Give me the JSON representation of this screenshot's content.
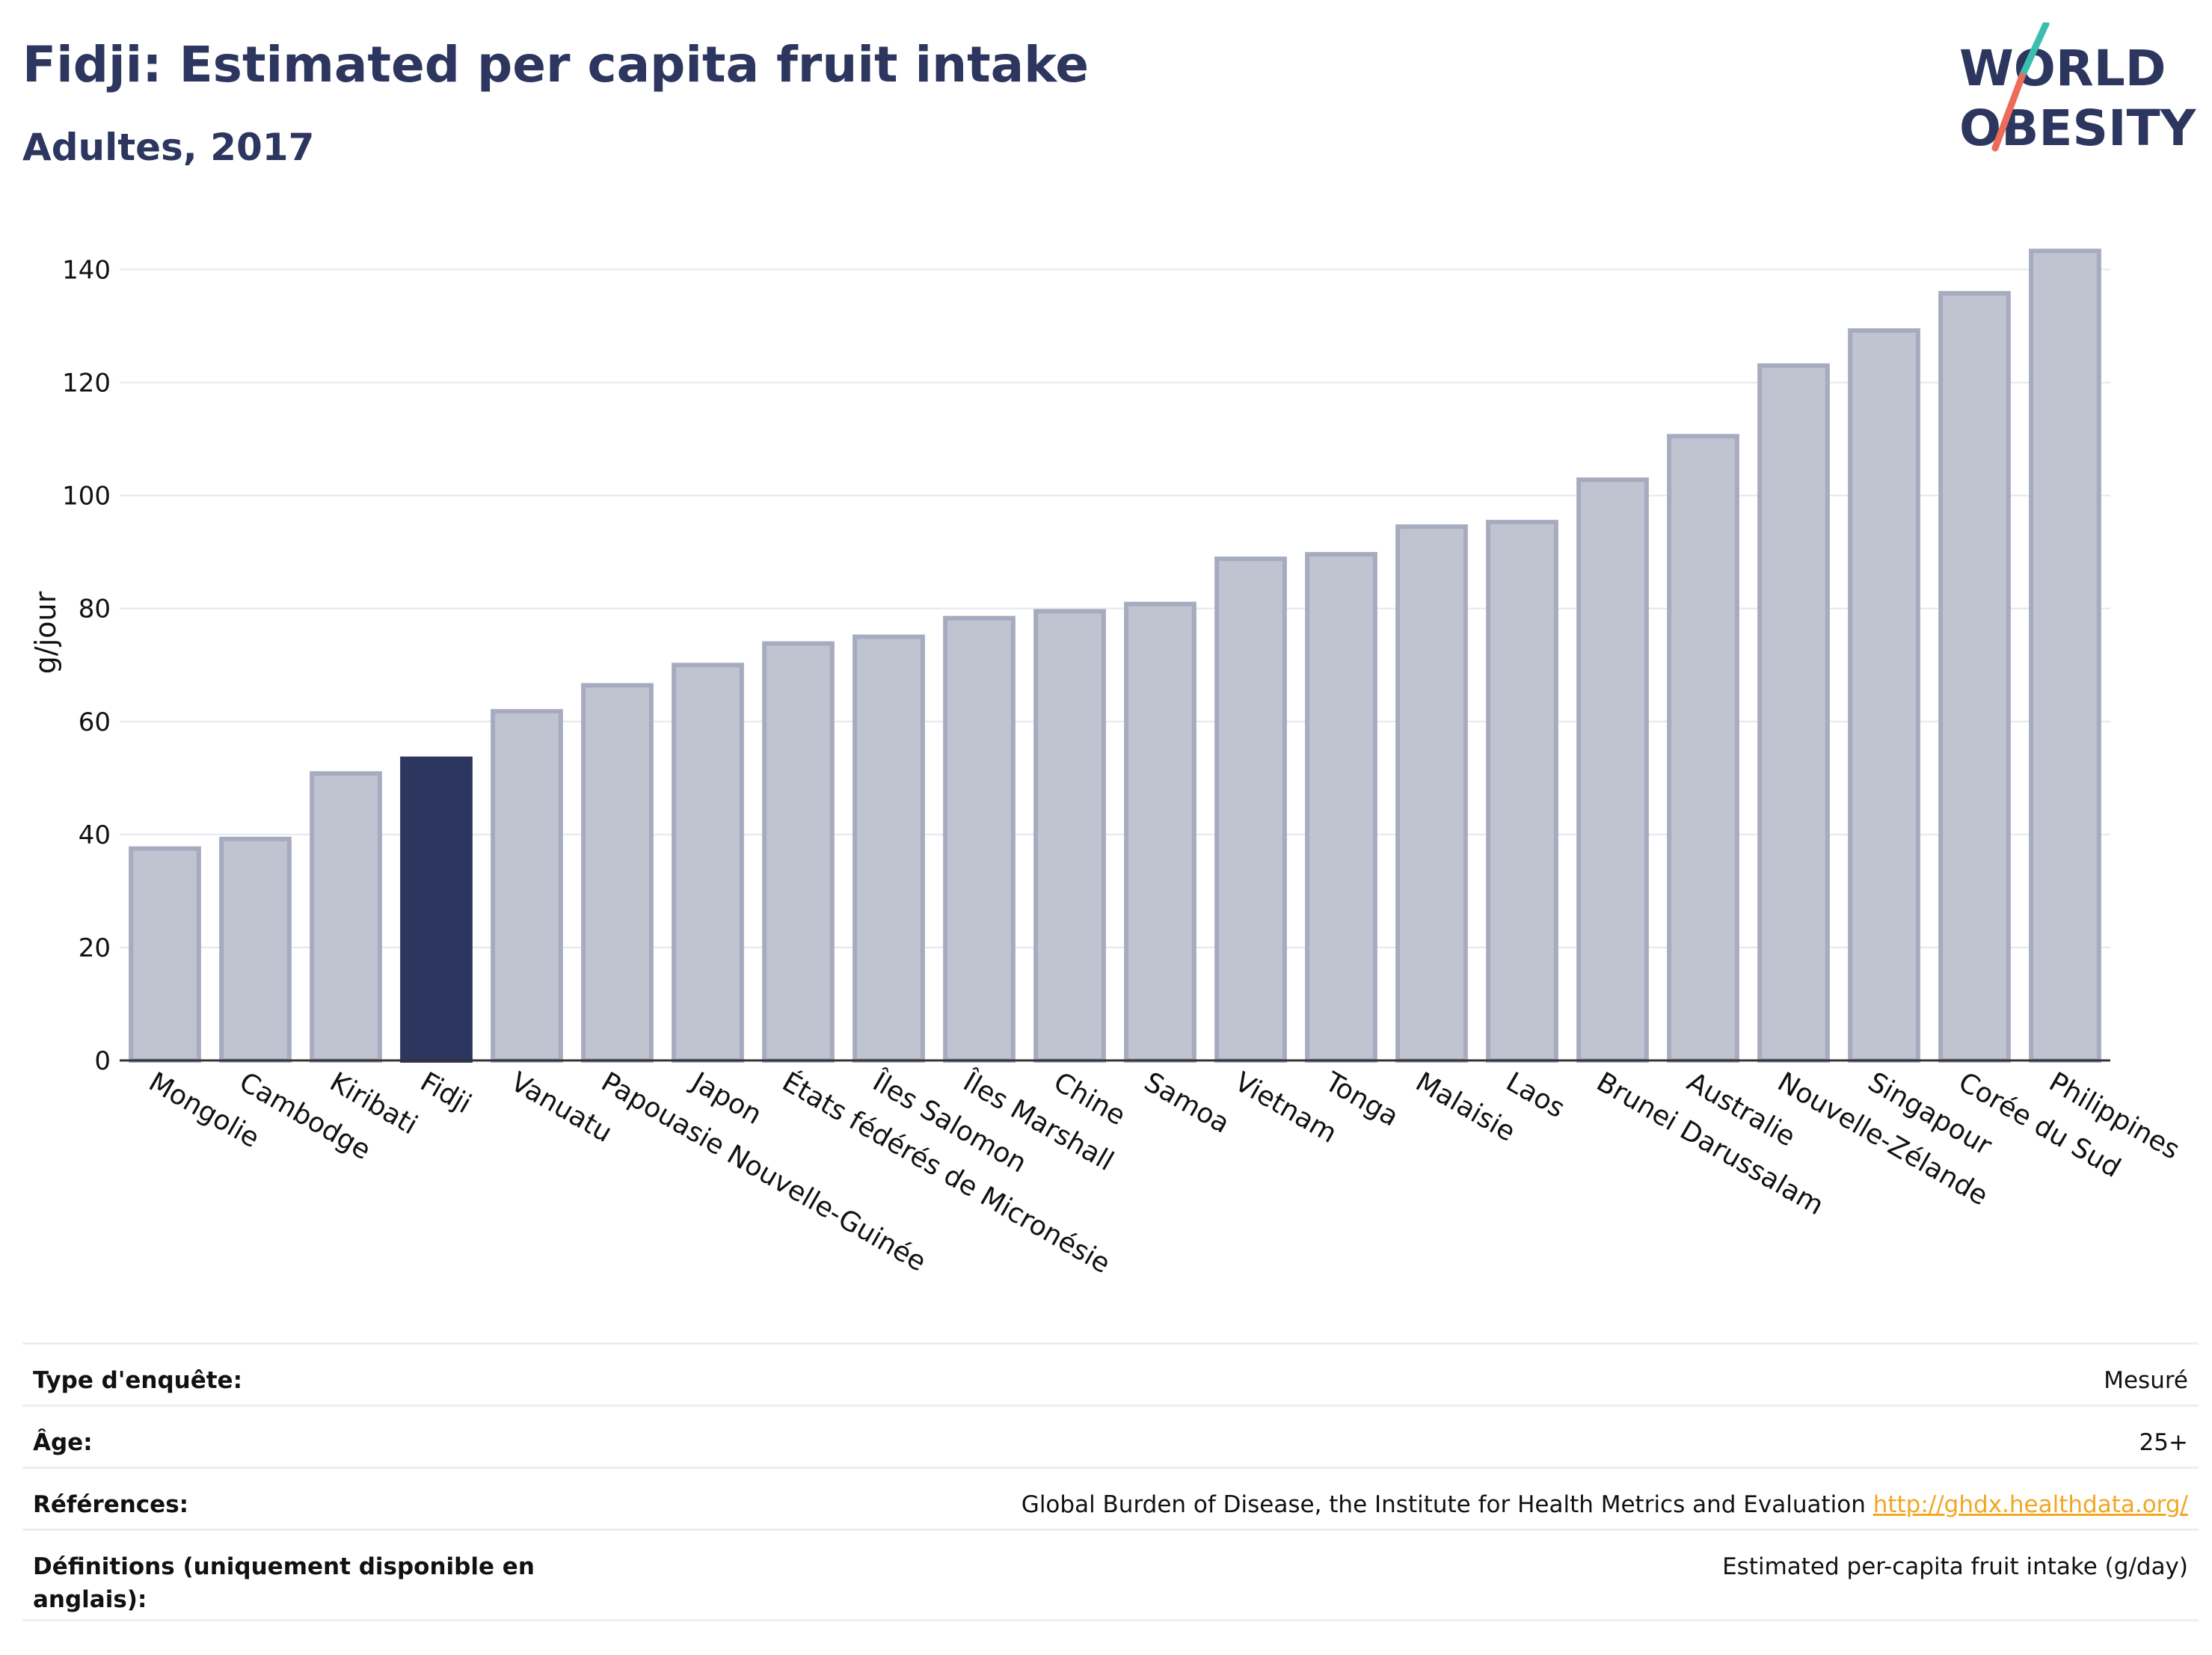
{
  "header": {
    "title": "Fidji: Estimated per capita fruit intake",
    "subtitle": "Adultes, 2017"
  },
  "logo": {
    "line1": "WORLD",
    "line2": "OBESITY",
    "accent_teal": "#3dbdb0",
    "accent_coral": "#ee6b5a",
    "text_color": "#2c365e"
  },
  "chart_data": {
    "type": "bar",
    "title": "Fidji: Estimated per capita fruit intake",
    "subtitle": "Adultes, 2017",
    "ylabel": "g/jour",
    "xlabel": "",
    "ylim": [
      0,
      148
    ],
    "yticks": [
      0,
      20,
      40,
      60,
      80,
      100,
      120,
      140
    ],
    "grid": true,
    "highlight": "Fidji",
    "colors": {
      "bar": "#c0c3d0",
      "bar_edge": "#a7abc0",
      "highlight": "#2c365e"
    },
    "categories": [
      "Mongolie",
      "Cambodge",
      "Kiribati",
      "Fidji",
      "Vanuatu",
      "Papouasie Nouvelle-Guinée",
      "Japon",
      "États fédérés de Micronésie",
      "Îles Salomon",
      "Îles Marshall",
      "Chine",
      "Samoa",
      "Vietnam",
      "Tonga",
      "Malaisie",
      "Laos",
      "Brunei Darussalam",
      "Australie",
      "Nouvelle-Zélande",
      "Singapour",
      "Corée du Sud",
      "Philippines"
    ],
    "values": [
      37.5,
      39.2,
      50.8,
      53.4,
      61.8,
      66.4,
      70.0,
      73.8,
      75.0,
      78.3,
      79.5,
      80.8,
      88.8,
      89.6,
      94.5,
      95.3,
      102.8,
      110.5,
      123.0,
      129.2,
      135.8,
      143.3
    ]
  },
  "meta": {
    "rows": [
      {
        "key": "Type d'enquête:",
        "value": "Mesuré"
      },
      {
        "key": "Âge:",
        "value": "25+"
      },
      {
        "key": "Références:",
        "value": "Global Burden of Disease, the Institute for Health Metrics and Evaluation",
        "link": "http://ghdx.healthdata.org/"
      },
      {
        "key": "Définitions (uniquement disponible en anglais):",
        "value": "Estimated per-capita fruit intake (g/day)"
      }
    ]
  }
}
